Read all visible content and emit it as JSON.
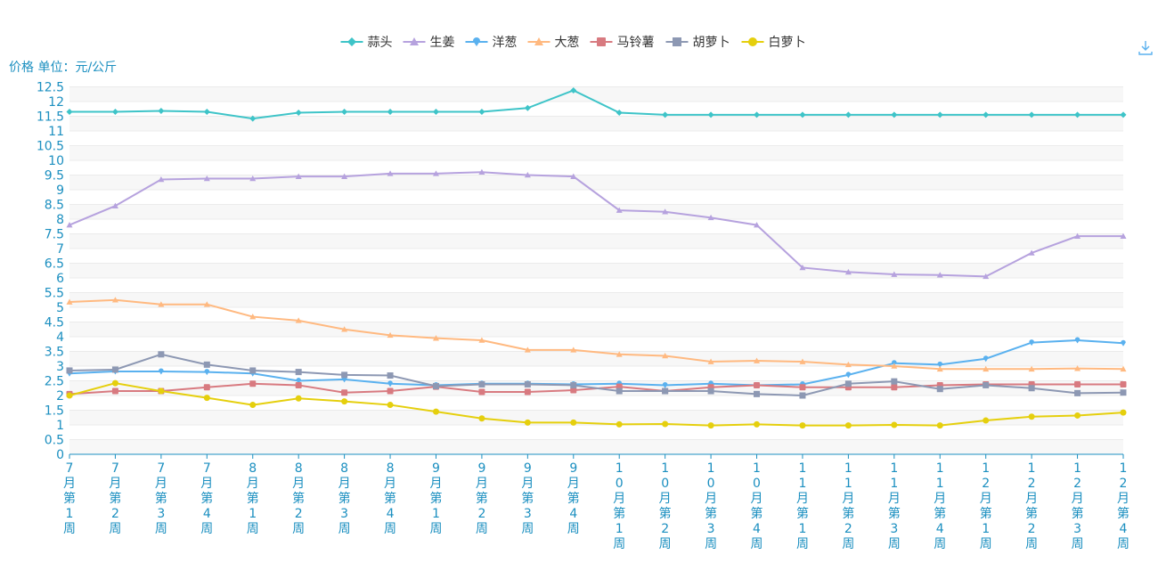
{
  "chart_data": {
    "type": "line",
    "unit_label": "价格 单位：元/公斤",
    "ylim": [
      0,
      12.5
    ],
    "y_ticks": [
      "0",
      "0.5",
      "1",
      "1.5",
      "2",
      "2.5",
      "3",
      "3.5",
      "4",
      "4.5",
      "5",
      "5.5",
      "6",
      "6.5",
      "7",
      "7.5",
      "8",
      "8.5",
      "9",
      "9.5",
      "10",
      "10.5",
      "11",
      "11.5",
      "12",
      "12.5"
    ],
    "categories": [
      "7月第1周",
      "7月第2周",
      "7月第3周",
      "7月第4周",
      "8月第1周",
      "8月第2周",
      "8月第3周",
      "8月第4周",
      "9月第1周",
      "9月第2周",
      "9月第3周",
      "9月第4周",
      "10月第1周",
      "10月第2周",
      "10月第3周",
      "10月第4周",
      "11月第1周",
      "11月第2周",
      "11月第3周",
      "11月第4周",
      "12月第1周",
      "12月第2周",
      "12月第3周",
      "12月第4周"
    ],
    "grid": "horizontal bands",
    "legend_position": "top-center",
    "series": [
      {
        "name": "蒜头",
        "color": "#3ec4c8",
        "marker": "diamond",
        "values": [
          11.65,
          11.65,
          11.68,
          11.65,
          11.42,
          11.62,
          11.65,
          11.65,
          11.65,
          11.65,
          11.78,
          12.38,
          11.62,
          11.55,
          11.55,
          11.55,
          11.55,
          11.55,
          11.55,
          11.55,
          11.55,
          11.55,
          11.55,
          11.55
        ]
      },
      {
        "name": "生姜",
        "color": "#b6a2de",
        "marker": "triangle",
        "values": [
          7.8,
          8.45,
          9.35,
          9.38,
          9.38,
          9.45,
          9.45,
          9.55,
          9.55,
          9.6,
          9.5,
          9.45,
          8.3,
          8.25,
          8.05,
          7.8,
          6.35,
          6.2,
          6.12,
          6.1,
          6.05,
          6.85,
          7.42,
          7.42
        ]
      },
      {
        "name": "洋葱",
        "color": "#5ab1ef",
        "marker": "pin",
        "values": [
          2.75,
          2.82,
          2.82,
          2.8,
          2.75,
          2.5,
          2.55,
          2.4,
          2.35,
          2.4,
          2.4,
          2.38,
          2.4,
          2.35,
          2.4,
          2.35,
          2.38,
          2.7,
          3.1,
          3.05,
          3.25,
          3.8,
          3.88,
          3.78
        ]
      },
      {
        "name": "大葱",
        "color": "#ffb980",
        "marker": "triangle",
        "values": [
          5.18,
          5.25,
          5.1,
          5.1,
          4.68,
          4.55,
          4.25,
          4.05,
          3.95,
          3.88,
          3.55,
          3.55,
          3.4,
          3.35,
          3.15,
          3.18,
          3.15,
          3.05,
          3.0,
          2.9,
          2.9,
          2.9,
          2.92,
          2.9
        ]
      },
      {
        "name": "马铃薯",
        "color": "#d87a80",
        "marker": "roundRect",
        "values": [
          2.05,
          2.15,
          2.15,
          2.28,
          2.4,
          2.35,
          2.1,
          2.15,
          2.3,
          2.12,
          2.12,
          2.18,
          2.3,
          2.15,
          2.28,
          2.35,
          2.28,
          2.28,
          2.28,
          2.35,
          2.38,
          2.38,
          2.38,
          2.38
        ]
      },
      {
        "name": "胡萝卜",
        "color": "#8d98b3",
        "marker": "rect",
        "values": [
          2.85,
          2.88,
          3.4,
          3.05,
          2.85,
          2.8,
          2.7,
          2.68,
          2.32,
          2.38,
          2.38,
          2.35,
          2.15,
          2.15,
          2.15,
          2.05,
          2.0,
          2.4,
          2.48,
          2.22,
          2.35,
          2.25,
          2.08,
          2.1
        ]
      },
      {
        "name": "白萝卜",
        "color": "#e5cf0d",
        "marker": "circle",
        "values": [
          2.0,
          2.42,
          2.15,
          1.92,
          1.68,
          1.9,
          1.8,
          1.68,
          1.45,
          1.22,
          1.08,
          1.08,
          1.02,
          1.03,
          0.98,
          1.02,
          0.98,
          0.98,
          1.0,
          0.98,
          1.15,
          1.28,
          1.32,
          1.42
        ]
      }
    ]
  },
  "toolbar": {
    "download_icon": "download-icon"
  }
}
